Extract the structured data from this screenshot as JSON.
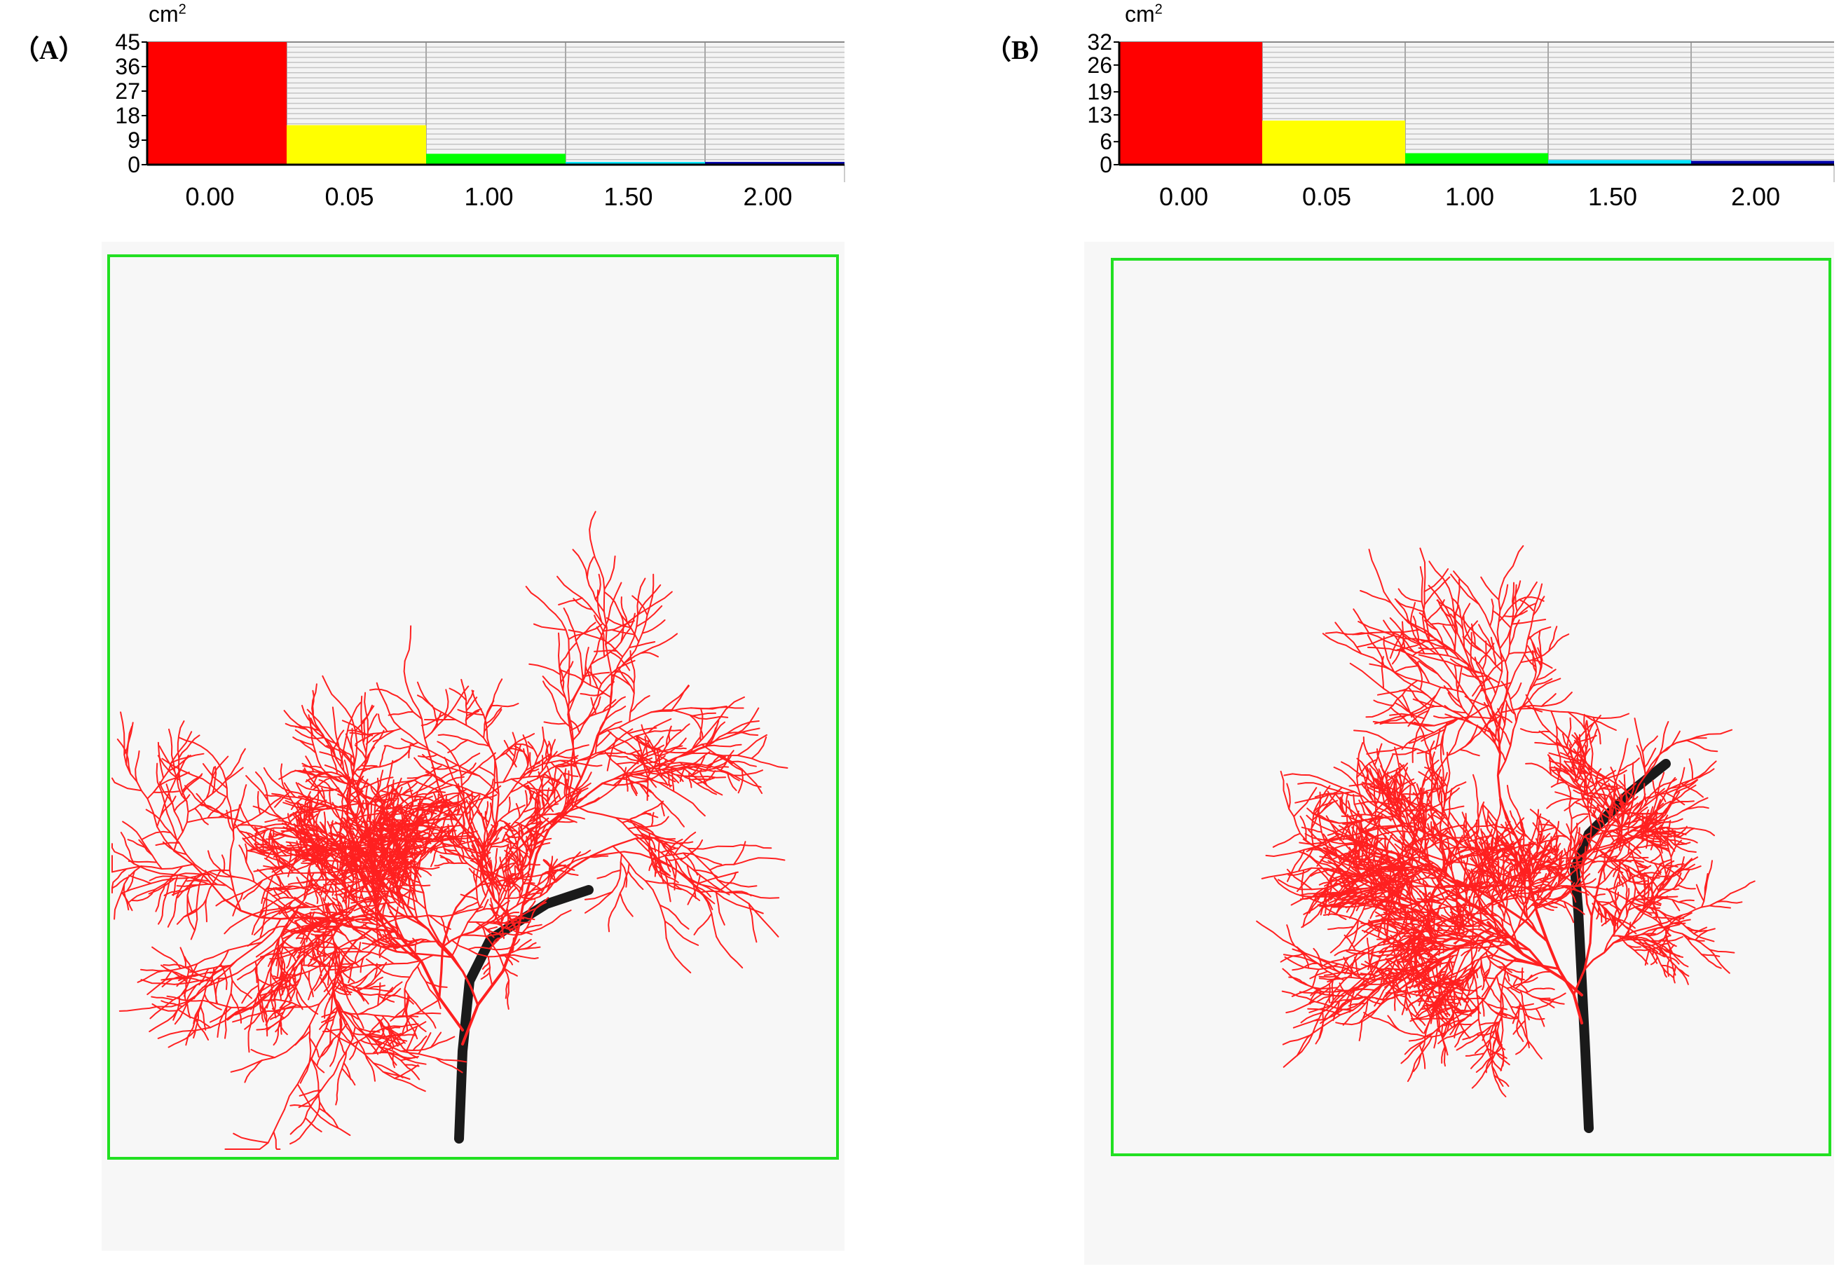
{
  "panels": [
    {
      "label": "（A）",
      "chart_data": {
        "type": "bar",
        "unit": "cm",
        "unit_exponent": "2",
        "categories": [
          "0.00",
          "0.05",
          "1.00",
          "1.50",
          "2.00"
        ],
        "values": [
          45,
          14.5,
          4,
          1,
          1
        ],
        "colors": [
          "#ff0000",
          "#ffff00",
          "#00ff00",
          "#00e5ff",
          "#0000aa"
        ],
        "yticks": [
          "0",
          "9",
          "18",
          "27",
          "36",
          "45"
        ],
        "ylim": [
          0,
          45
        ],
        "grid": true,
        "legend": "none"
      }
    },
    {
      "label": "（B）",
      "chart_data": {
        "type": "bar",
        "unit": "cm",
        "unit_exponent": "2",
        "categories": [
          "0.00",
          "0.05",
          "1.00",
          "1.50",
          "2.00"
        ],
        "values": [
          32,
          11.5,
          3,
          1.2,
          1
        ],
        "colors": [
          "#ff0000",
          "#ffff00",
          "#00ff00",
          "#00e5ff",
          "#0000aa"
        ],
        "yticks": [
          "0",
          "6",
          "13",
          "19",
          "26",
          "32"
        ],
        "ylim": [
          0,
          32
        ],
        "grid": true,
        "legend": "none"
      }
    }
  ],
  "root_color": "#ff2020",
  "frame_color": "#22e022"
}
